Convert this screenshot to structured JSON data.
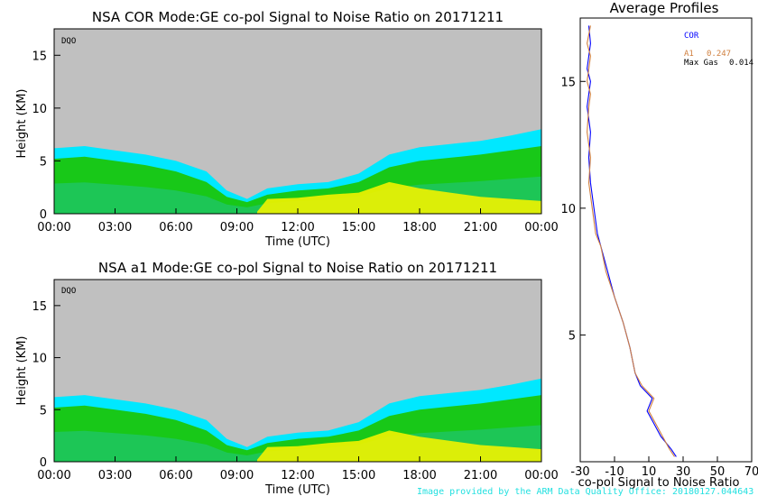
{
  "chart_data": [
    {
      "type": "heatmap",
      "title": "NSA COR  Mode:GE  co-pol Signal to Noise Ratio  on 20171211",
      "xlabel": "Time (UTC)",
      "ylabel": "Height (KM)",
      "badge": "DQO",
      "x_ticks": [
        "00:00",
        "03:00",
        "06:00",
        "09:00",
        "12:00",
        "15:00",
        "18:00",
        "21:00",
        "00:00"
      ],
      "y_ticks": [
        "0",
        "5",
        "10",
        "15"
      ],
      "xlim": [
        0,
        24
      ],
      "ylim": [
        0,
        17.5
      ],
      "grid": false,
      "background_color": "#c0c0c0",
      "colors": {
        "weak": "#00e8ff",
        "low": "#22c48a",
        "mid": "#18c818",
        "high": "#f2f200",
        "peak": "#e8e8c0"
      },
      "layers": [
        {
          "name": "weak",
          "points": [
            [
              0,
              6.2
            ],
            [
              1.5,
              6.4
            ],
            [
              3,
              6.0
            ],
            [
              4.5,
              5.6
            ],
            [
              6,
              5.0
            ],
            [
              7.5,
              4.0
            ],
            [
              8.5,
              2.2
            ],
            [
              9.5,
              1.4
            ],
            [
              10.5,
              2.4
            ],
            [
              12,
              2.8
            ],
            [
              13.5,
              3.0
            ],
            [
              15,
              3.8
            ],
            [
              16.5,
              5.6
            ],
            [
              18,
              6.3
            ],
            [
              19.5,
              6.6
            ],
            [
              21,
              6.9
            ],
            [
              22.5,
              7.4
            ],
            [
              24,
              8.0
            ]
          ]
        },
        {
          "name": "mid",
          "points": [
            [
              0,
              5.2
            ],
            [
              1.5,
              5.4
            ],
            [
              3,
              5.0
            ],
            [
              4.5,
              4.6
            ],
            [
              6,
              4.0
            ],
            [
              7.5,
              3.0
            ],
            [
              8.5,
              1.6
            ],
            [
              9.5,
              1.1
            ],
            [
              10.5,
              1.8
            ],
            [
              12,
              2.2
            ],
            [
              13.5,
              2.4
            ],
            [
              15,
              3.0
            ],
            [
              16.5,
              4.4
            ],
            [
              18,
              5.0
            ],
            [
              19.5,
              5.3
            ],
            [
              21,
              5.6
            ],
            [
              22.5,
              6.0
            ],
            [
              24,
              6.4
            ]
          ]
        },
        {
          "name": "high",
          "points": [
            [
              10,
              0.2
            ],
            [
              10.5,
              1.4
            ],
            [
              12,
              1.5
            ],
            [
              13.5,
              1.8
            ],
            [
              15,
              2.0
            ],
            [
              16.5,
              3.0
            ],
            [
              18,
              2.4
            ],
            [
              19.5,
              2.0
            ],
            [
              21,
              1.6
            ],
            [
              22.5,
              1.4
            ],
            [
              24,
              1.2
            ]
          ]
        }
      ]
    },
    {
      "type": "heatmap",
      "title": "NSA a1   Mode:GE  co-pol Signal to Noise Ratio  on 20171211",
      "xlabel": "Time (UTC)",
      "ylabel": "Height (KM)",
      "badge": "DQO",
      "x_ticks": [
        "00:00",
        "03:00",
        "06:00",
        "09:00",
        "12:00",
        "15:00",
        "18:00",
        "21:00",
        "00:00"
      ],
      "y_ticks": [
        "0",
        "5",
        "10",
        "15"
      ],
      "xlim": [
        0,
        24
      ],
      "ylim": [
        0,
        17.5
      ],
      "grid": false,
      "background_color": "#c0c0c0",
      "colors": {
        "weak": "#00e8ff",
        "low": "#22c48a",
        "mid": "#18c818",
        "high": "#f2f200",
        "peak": "#e8e8c0"
      },
      "layers": [
        {
          "name": "weak",
          "points": [
            [
              0,
              6.2
            ],
            [
              1.5,
              6.4
            ],
            [
              3,
              6.0
            ],
            [
              4.5,
              5.6
            ],
            [
              6,
              5.0
            ],
            [
              7.5,
              4.0
            ],
            [
              8.5,
              2.2
            ],
            [
              9.5,
              1.4
            ],
            [
              10.5,
              2.4
            ],
            [
              12,
              2.8
            ],
            [
              13.5,
              3.0
            ],
            [
              15,
              3.8
            ],
            [
              16.5,
              5.6
            ],
            [
              18,
              6.3
            ],
            [
              19.5,
              6.6
            ],
            [
              21,
              6.9
            ],
            [
              22.5,
              7.4
            ],
            [
              24,
              8.0
            ]
          ]
        },
        {
          "name": "mid",
          "points": [
            [
              0,
              5.2
            ],
            [
              1.5,
              5.4
            ],
            [
              3,
              5.0
            ],
            [
              4.5,
              4.6
            ],
            [
              6,
              4.0
            ],
            [
              7.5,
              3.0
            ],
            [
              8.5,
              1.6
            ],
            [
              9.5,
              1.1
            ],
            [
              10.5,
              1.8
            ],
            [
              12,
              2.2
            ],
            [
              13.5,
              2.4
            ],
            [
              15,
              3.0
            ],
            [
              16.5,
              4.4
            ],
            [
              18,
              5.0
            ],
            [
              19.5,
              5.3
            ],
            [
              21,
              5.6
            ],
            [
              22.5,
              6.0
            ],
            [
              24,
              6.4
            ]
          ]
        },
        {
          "name": "high",
          "points": [
            [
              10,
              0.2
            ],
            [
              10.5,
              1.4
            ],
            [
              12,
              1.5
            ],
            [
              13.5,
              1.8
            ],
            [
              15,
              2.0
            ],
            [
              16.5,
              3.0
            ],
            [
              18,
              2.4
            ],
            [
              19.5,
              2.0
            ],
            [
              21,
              1.6
            ],
            [
              22.5,
              1.4
            ],
            [
              24,
              1.2
            ]
          ]
        }
      ]
    },
    {
      "type": "line",
      "title": "Average Profiles",
      "xlabel": "co-pol Signal to Noise Ratio",
      "ylabel": "",
      "x_ticks": [
        "-30",
        "-10",
        "10",
        "30",
        "50",
        "70"
      ],
      "y_ticks": [
        "5",
        "10",
        "15"
      ],
      "xlim": [
        -30,
        70
      ],
      "ylim": [
        0,
        17.5
      ],
      "legend_position": "top-right",
      "legend": {
        "cor_label": "COR",
        "a1_label": "A1",
        "a1_value": "0.247",
        "maxgas_label": "Max Gas",
        "maxgas_value": "0.014"
      },
      "series": [
        {
          "name": "COR",
          "color": "#0000ff",
          "x": [
            26,
            23,
            17,
            13,
            9,
            12,
            5,
            2,
            -1,
            -5,
            -10,
            -14,
            -18,
            -20,
            -22,
            -24,
            -25,
            -24,
            -26,
            -25,
            -24,
            -26,
            -25,
            -24,
            -25
          ],
          "y": [
            0.2,
            0.5,
            1.0,
            1.5,
            2.0,
            2.5,
            3.0,
            3.5,
            4.5,
            5.5,
            6.5,
            7.5,
            8.5,
            9.0,
            10.0,
            11.0,
            12.0,
            13.0,
            14.0,
            14.5,
            15.0,
            15.5,
            16.0,
            16.5,
            17.2
          ]
        },
        {
          "name": "A1",
          "color": "#d08040",
          "x": [
            25,
            22,
            18,
            14,
            10,
            13,
            6,
            2,
            -1,
            -5,
            -10,
            -15,
            -18,
            -21,
            -23,
            -25,
            -24,
            -26,
            -25,
            -24,
            -26,
            -25,
            -24,
            -26,
            -24
          ],
          "y": [
            0.2,
            0.5,
            1.0,
            1.5,
            2.0,
            2.5,
            3.0,
            3.5,
            4.5,
            5.5,
            6.5,
            7.5,
            8.5,
            9.0,
            10.0,
            11.0,
            12.0,
            13.0,
            14.0,
            14.5,
            15.0,
            15.5,
            16.0,
            16.5,
            17.2
          ]
        }
      ]
    }
  ],
  "credit": "Image provided by the ARM Data Quality Office: 20180127.044643"
}
